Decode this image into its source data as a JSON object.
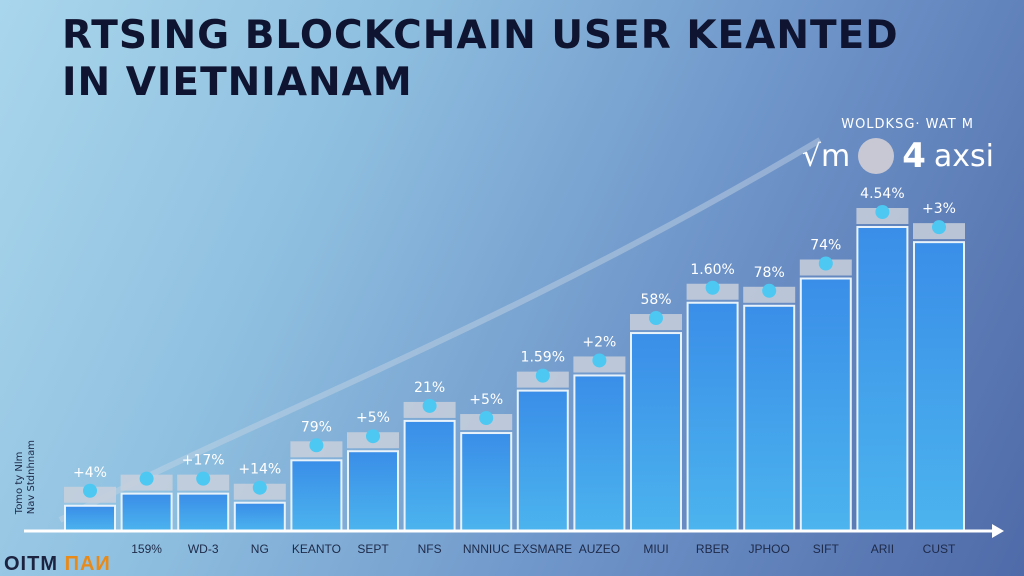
{
  "title_line1": "RTSING BLOCKCHAIN USER KEANTED",
  "title_line2": "IN VIETNIANAM",
  "legend": {
    "small": "WOLDKSG· WAT M",
    "left": "√m",
    "four": "4",
    "right": "axsi"
  },
  "side_label": [
    "Tomo ty Nlm",
    "Nav Stdnhnam"
  ],
  "logo": {
    "text": "OITM",
    "accent": "ПAИ"
  },
  "colors": {
    "bar": "#3d9fe8",
    "bar_dark": "#2a5fd0",
    "cap": "#c9d0dc",
    "dot": "#4cc8f2",
    "axis": "#ffffff"
  },
  "chart_data": {
    "type": "bar",
    "title": "RTSING BLOCKCHAIN USER KEANTED IN VIETNIANAM",
    "categories": [
      "",
      "159%",
      "WD-3",
      "NG",
      "KEANTO",
      "SEPT",
      "NFS",
      "NNNIUC",
      "EXSMARE",
      "AUZEO",
      "MIUI",
      "RBER",
      "JPHOO",
      "SIFT",
      "ARII",
      "CUST"
    ],
    "values": [
      8,
      12,
      12,
      9,
      23,
      26,
      36,
      32,
      46,
      51,
      65,
      75,
      74,
      83,
      100,
      95
    ],
    "data_labels": [
      "+4%",
      "",
      "+17%",
      "+14%",
      "79%",
      "+5%",
      "21%",
      "+5%",
      "1.59%",
      "+2%",
      "58%",
      "1.60%",
      "78%",
      "74%",
      "4.54%",
      "+3%"
    ],
    "ylim": [
      0,
      100
    ],
    "grid": false
  }
}
